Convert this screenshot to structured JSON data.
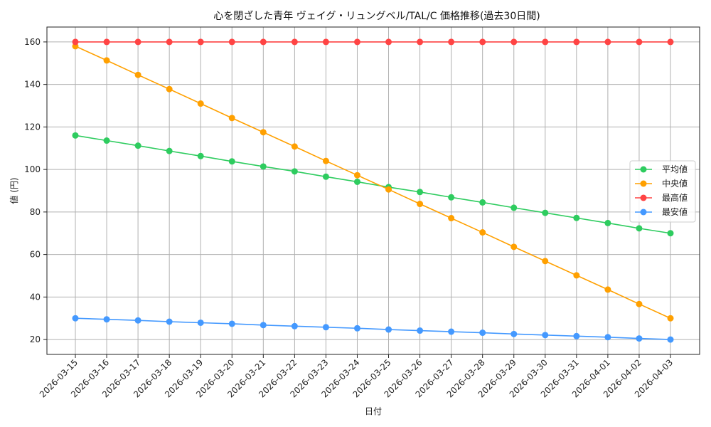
{
  "chart_data": {
    "type": "line",
    "title": "心を閉ざした青年 ヴェイグ・リュングベル/TAL/C 価格推移(過去30日間)",
    "xlabel": "日付",
    "ylabel": "値 (円)",
    "ylim": [
      13,
      167
    ],
    "yticks": [
      20,
      40,
      60,
      80,
      100,
      120,
      140,
      160
    ],
    "grid": true,
    "legend_position": "center-right",
    "categories": [
      "2026-03-15",
      "2026-03-16",
      "2026-03-17",
      "2026-03-18",
      "2026-03-19",
      "2026-03-20",
      "2026-03-21",
      "2026-03-22",
      "2026-03-23",
      "2026-03-24",
      "2026-03-25",
      "2026-03-26",
      "2026-03-27",
      "2026-03-28",
      "2026-03-29",
      "2026-03-30",
      "2026-03-31",
      "2026-04-01",
      "2026-04-02",
      "2026-04-03"
    ],
    "series": [
      {
        "name": "平均値",
        "color": "#2ecc5f",
        "values": [
          116,
          113.6,
          111.2,
          108.7,
          106.3,
          103.8,
          101.4,
          99.1,
          96.6,
          94.2,
          91.7,
          89.4,
          86.9,
          84.5,
          82.0,
          79.6,
          77.2,
          74.8,
          72.3,
          70
        ]
      },
      {
        "name": "中央値",
        "color": "#ffa000",
        "values": [
          158,
          151.3,
          144.5,
          137.8,
          131.0,
          124.2,
          117.5,
          110.8,
          104.0,
          97.3,
          90.6,
          83.8,
          77.1,
          70.4,
          63.6,
          56.9,
          50.2,
          43.5,
          36.7,
          30
        ]
      },
      {
        "name": "最高値",
        "color": "#ff4444",
        "values": [
          160,
          160,
          160,
          160,
          160,
          160,
          160,
          160,
          160,
          160,
          160,
          160,
          160,
          160,
          160,
          160,
          160,
          160,
          160,
          160
        ]
      },
      {
        "name": "最安値",
        "color": "#4499ff",
        "values": [
          30,
          29.5,
          29.0,
          28.4,
          27.9,
          27.4,
          26.8,
          26.3,
          25.8,
          25.3,
          24.7,
          24.2,
          23.7,
          23.2,
          22.6,
          22.1,
          21.6,
          21.1,
          20.5,
          20
        ]
      }
    ]
  }
}
